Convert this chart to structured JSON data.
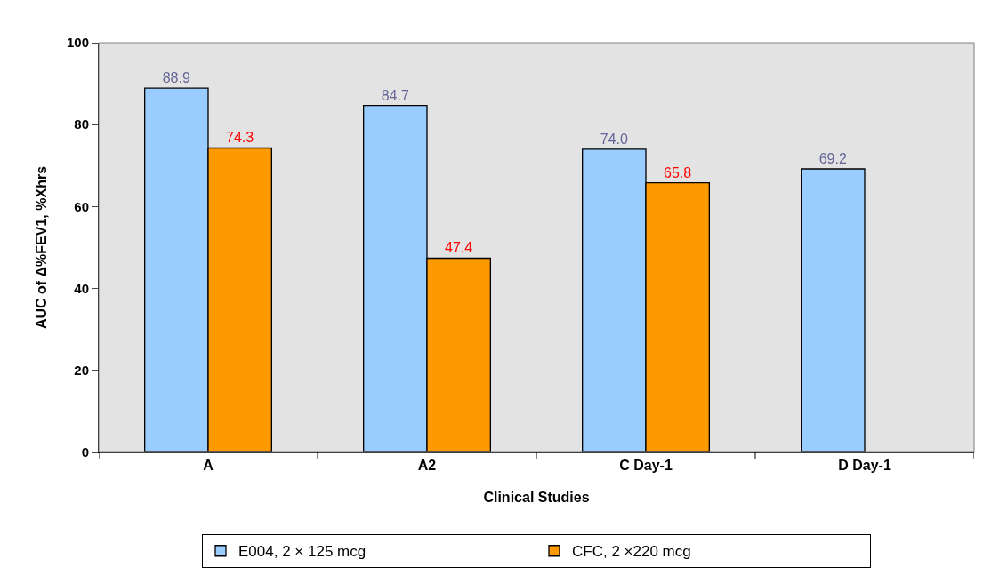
{
  "chart_data": {
    "type": "bar",
    "xlabel": "Clinical Studies",
    "ylabel": "AUC of Δ%FEV1, %Xhrs",
    "categories": [
      "A",
      "A2",
      "C Day-1",
      "D Day-1"
    ],
    "series": [
      {
        "name": "E004, 2 × 125 mcg",
        "color": "#99ccff",
        "values": [
          88.9,
          84.7,
          74.0,
          69.2
        ],
        "value_labels": [
          "88.9",
          "84.7",
          "74.0",
          "69.2"
        ]
      },
      {
        "name": "CFC, 2 ×220 mcg",
        "color": "#ff9900",
        "values": [
          74.3,
          47.4,
          65.8,
          null
        ],
        "value_labels": [
          "74.3",
          "47.4",
          "65.8",
          null
        ]
      }
    ],
    "ylim": [
      0,
      100
    ],
    "yticks": [
      0,
      20,
      40,
      60,
      80,
      100
    ],
    "grid": false,
    "legend": "bottom"
  }
}
